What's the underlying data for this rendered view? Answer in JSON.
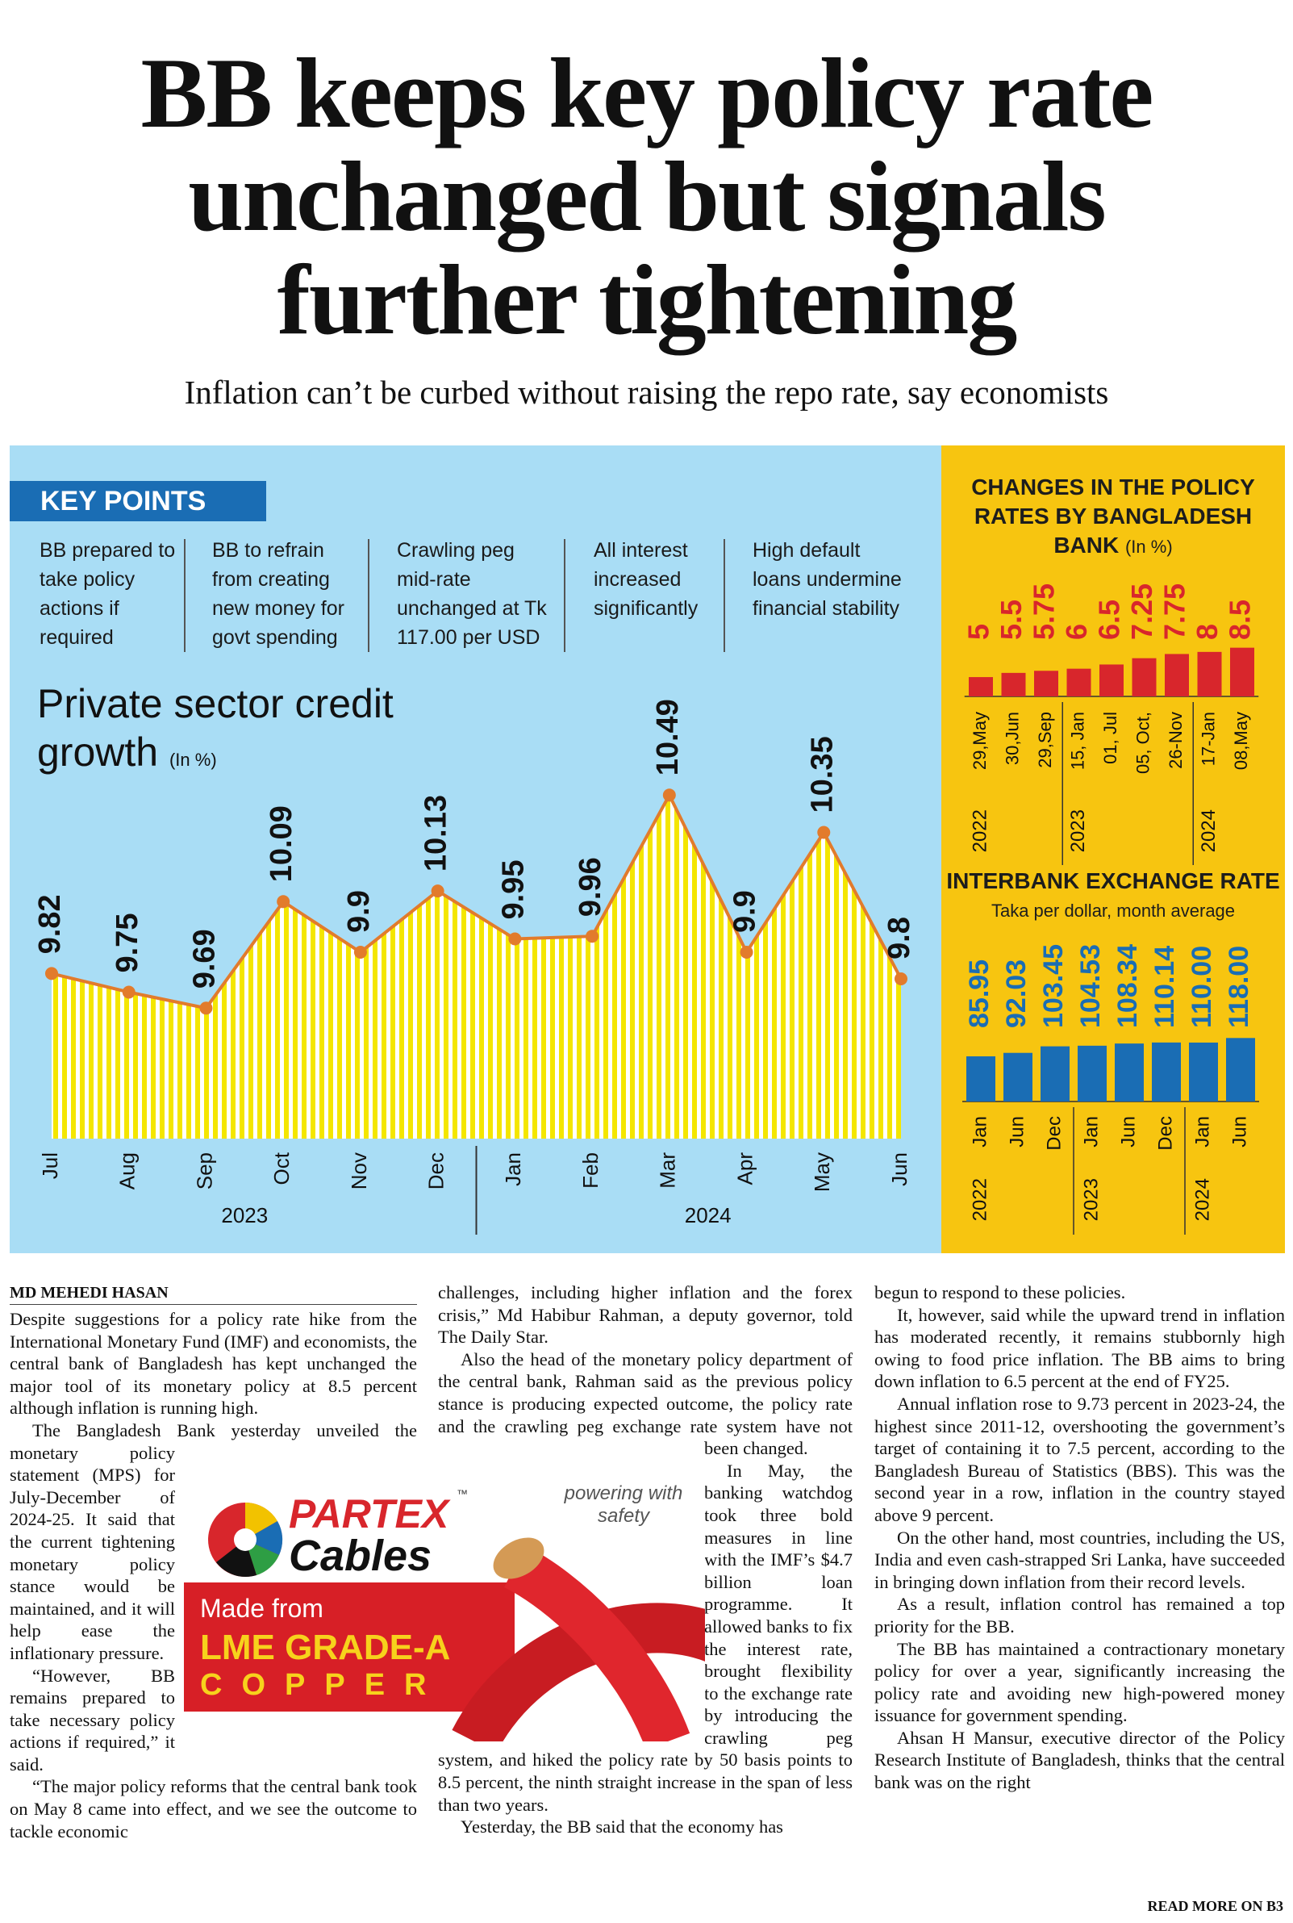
{
  "header": {
    "title_lines": [
      "BB keeps key policy rate",
      "unchanged but signals",
      "further tightening"
    ],
    "subtitle": "Inflation can’t be curbed without raising the repo rate, say economists"
  },
  "key_points": {
    "label": "KEY POINTS",
    "items": [
      "BB prepared to take policy actions if required",
      "BB to refrain from creating new money for govt spending",
      "Crawling peg mid-rate unchanged at Tk 117.00 per USD",
      "All interest increased significantly",
      "High default loans undermine financial stability"
    ]
  },
  "chart_data": [
    {
      "type": "line",
      "title": "Private sector credit growth",
      "unit": "(In %)",
      "categories": [
        "Jul",
        "Aug",
        "Sep",
        "Oct",
        "Nov",
        "Dec",
        "Jan",
        "Feb",
        "Mar",
        "Apr",
        "May",
        "Jun"
      ],
      "group_labels": [
        "2023",
        null,
        null,
        null,
        null,
        null,
        "2024",
        null,
        null,
        null,
        null,
        null
      ],
      "values": [
        9.82,
        9.75,
        9.69,
        10.09,
        9.9,
        10.13,
        9.95,
        9.96,
        10.49,
        9.9,
        10.35,
        9.8
      ],
      "color": "#e27b2c",
      "fill_color": "#f4e600",
      "ylim": [
        9.2,
        10.6
      ]
    },
    {
      "type": "bar",
      "title": "CHANGES IN THE POLICY RATES BY BANGLADESH BANK",
      "unit": "(In %)",
      "categories": [
        "29,May",
        "30,Jun",
        "29,Sep",
        "15, Jan",
        "01, Jul",
        "05, Oct,",
        "26-Nov",
        "17-Jan",
        "08,May"
      ],
      "group_labels": [
        "2022",
        null,
        null,
        "2023",
        null,
        null,
        null,
        "2024",
        null
      ],
      "values": [
        5,
        5.5,
        5.75,
        6,
        6.5,
        7.25,
        7.75,
        8,
        8.5
      ],
      "color": "#d8262c",
      "ylim": [
        2.7,
        15
      ]
    },
    {
      "type": "bar",
      "title": "INTERBANK EXCHANGE RATE",
      "subtitle": "Taka per dollar, month average",
      "categories": [
        "Jan",
        "Jun",
        "Dec",
        "Jan",
        "Jun",
        "Dec",
        "Jan",
        "Jun"
      ],
      "group_labels": [
        "2022",
        null,
        null,
        "2023",
        null,
        null,
        "2024",
        null
      ],
      "values": [
        85.95,
        92.03,
        103.45,
        104.53,
        108.34,
        110.14,
        110.0,
        118.0
      ],
      "value_labels": [
        "85.95",
        "92.03",
        "103.45",
        "104.53",
        "108.34",
        "110.14",
        "110.00",
        "118.00"
      ],
      "color": "#1a6db4",
      "ylim": [
        7,
        330
      ]
    }
  ],
  "article": {
    "byline": "MD MEHEDI HASAN",
    "columns": [
      [
        "Despite suggestions for a policy rate hike from the International Monetary Fund (IMF) and economists, the central bank of Bangladesh has kept unchanged the major tool of its monetary policy at 8.5 percent although inflation is running high.",
        "The Bangladesh Bank yesterday unveiled the monetary policy statement (MPS) for July-December of 2024-25. It said that the current tightening monetary policy stance would be maintained, and it will help ease the inflationary pressure.",
        "“However, BB remains prepared to take necessary policy actions if required,” it said.",
        "“The major policy reforms that the central bank took on May 8 came into effect, and we see the outcome to tackle economic"
      ],
      [
        "challenges, including higher inflation and the forex crisis,” Md Habibur Rahman, a deputy governor, told The Daily Star.",
        "Also the head of the monetary policy department of the central bank, Rahman said as the previous policy stance is producing expected outcome, the policy rate and the crawling peg exchange rate system have not been changed.",
        "In May, the banking watchdog took three bold measures in line with the IMF’s $4.7 billion loan programme. It allowed banks to fix the interest rate, brought flexibility to the exchange rate by introducing the crawling peg system, and hiked the policy rate by 50 basis points to 8.5 percent, the ninth straight increase in the span of less than two years.",
        "Yesterday, the BB said that the economy has"
      ],
      [
        "begun to respond to these policies.",
        "It, however, said while the upward trend in inflation has moderated recently, it remains stubbornly high owing to food price inflation. The BB aims to bring down inflation to 6.5 percent at the end of FY25.",
        "Annual inflation rose to 9.73 percent in 2023-24, the highest since 2011-12, overshooting the government’s target of containing it to 7.5 percent, according to the Bangladesh Bureau of Statistics (BBS). This was the second year in a row, inflation in the country stayed above 9 percent.",
        "On the other hand, most countries, including the US, India and even cash-strapped Sri Lanka, have succeeded in bringing down inflation from their record levels.",
        "As a result, inflation control has remained a top priority for the BB.",
        "The BB has maintained a contractionary monetary policy for over a year, significantly increasing the policy rate and avoiding new high-powered money issuance for government spending.",
        "Ahsan H Mansur, executive director of the Policy Research Institute of Bangladesh, thinks that the central bank was on the right"
      ]
    ],
    "continuation": "READ MORE ON B3"
  },
  "ad": {
    "brand": "PARTEX",
    "trademark": "™",
    "product": "Cables",
    "tagline": "powering with safety",
    "made_from": "Made from",
    "grade": "LME GRADE-A",
    "material": "COPPER"
  }
}
